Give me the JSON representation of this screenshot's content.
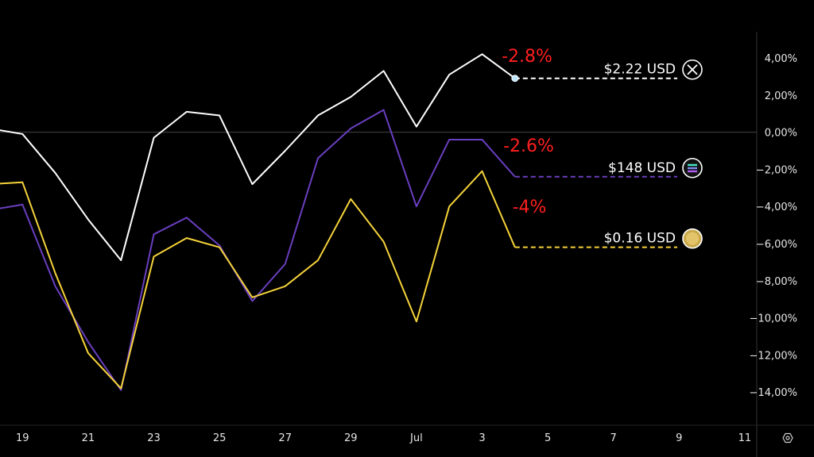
{
  "chart_data": {
    "type": "line",
    "x": [
      "Jun 18",
      "Jun 19",
      "Jun 20",
      "Jun 21",
      "Jun 22",
      "Jun 23",
      "Jun 24",
      "Jun 25",
      "Jun 26",
      "Jun 27",
      "Jun 28",
      "Jun 29",
      "Jun 30",
      "Jul 1",
      "Jul 2",
      "Jul 3",
      "Jul 4"
    ],
    "x_tick_labels": [
      "19",
      "21",
      "23",
      "25",
      "27",
      "29",
      "Jul",
      "3",
      "5",
      "7",
      "9",
      "11"
    ],
    "y_tick_labels": [
      "4,00%",
      "2,00%",
      "0,00%",
      "−2,00%",
      "−4,00%",
      "−6,00%",
      "−8,00%",
      "−10,00%",
      "−12,00%",
      "−14,00%"
    ],
    "ylim": [
      -16,
      5
    ],
    "grid": false,
    "baseline": 0,
    "series": [
      {
        "color": "#ffffff",
        "values": [
          0.2,
          -0.1,
          -2.2,
          -4.7,
          -6.9,
          -0.3,
          1.1,
          0.9,
          -2.8,
          -1.0,
          0.9,
          1.9,
          3.3,
          0.3,
          3.1,
          4.2,
          2.9
        ],
        "price_label": "$2.22 USD",
        "change_label": "-2.8%",
        "icon": "xrp-icon"
      },
      {
        "color": "#6a3fc0",
        "values": [
          -4.2,
          -3.9,
          -8.3,
          -11.3,
          -13.9,
          -5.5,
          -4.6,
          -6.1,
          -9.1,
          -7.1,
          -1.4,
          0.2,
          1.2,
          -4.0,
          -0.4,
          -0.4,
          -2.4
        ],
        "price_label": "$148 USD",
        "change_label": "-2.6%",
        "icon": "solana-icon"
      },
      {
        "color": "#f5d33a",
        "values": [
          -2.8,
          -2.7,
          -7.6,
          -11.9,
          -13.8,
          -6.7,
          -5.7,
          -6.2,
          -8.9,
          -8.3,
          -6.9,
          -3.6,
          -5.9,
          -10.2,
          -4.0,
          -2.1,
          -6.2
        ],
        "price_label": "$0.16 USD",
        "change_label": "-4%",
        "icon": "dogecoin-icon"
      }
    ],
    "change_color": "#ff1f1f"
  },
  "controls": {
    "settings_icon": "gear-icon"
  }
}
